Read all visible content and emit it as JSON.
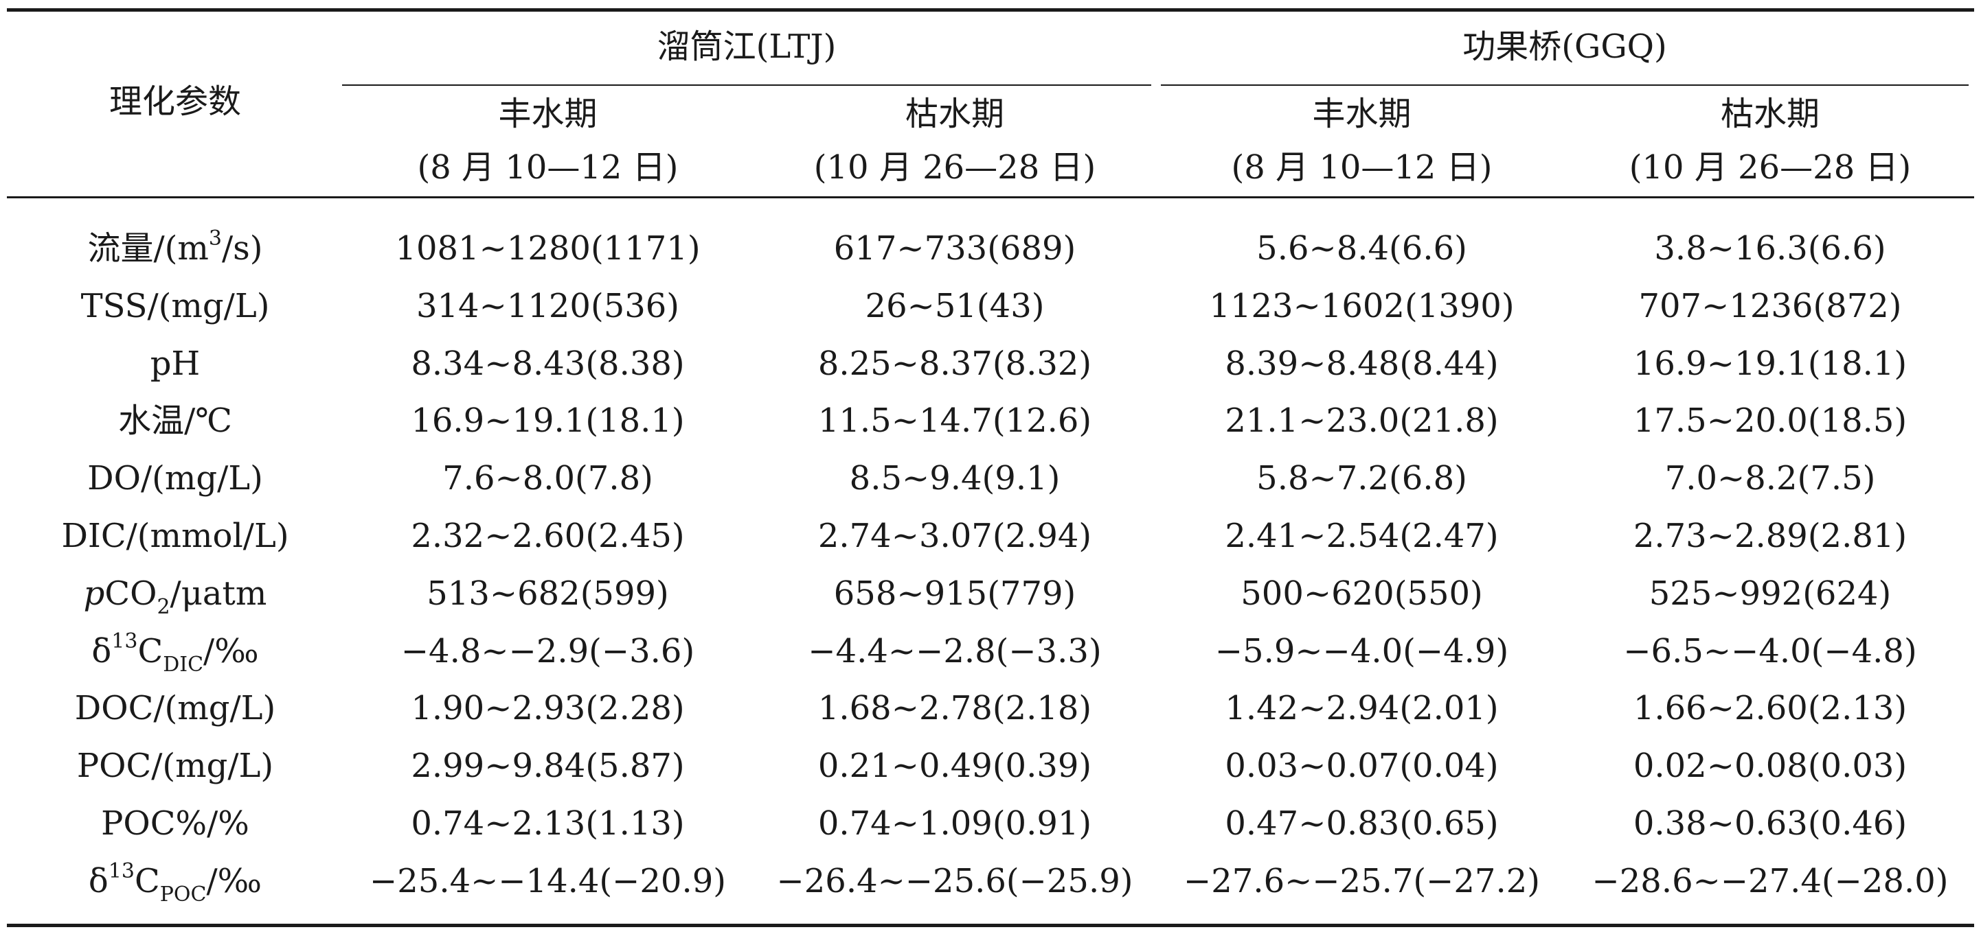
{
  "header": {
    "param_label": "理化参数",
    "groups": [
      {
        "name": "溜筒江(LTJ)",
        "periods": [
          {
            "name": "丰水期",
            "date": "(8 月 10—12 日)"
          },
          {
            "name": "枯水期",
            "date": "(10 月 26—28 日)"
          }
        ]
      },
      {
        "name": "功果桥(GGQ)",
        "periods": [
          {
            "name": "丰水期",
            "date": "(8 月 10—12 日)"
          },
          {
            "name": "枯水期",
            "date": "(10 月 26—28 日)"
          }
        ]
      }
    ]
  },
  "rows": [
    {
      "label_pre": "流量/(m",
      "label_sup": "3",
      "label_post": "/s)",
      "values": [
        "1081~1280(1171)",
        "617~733(689)",
        "5.6~8.4(6.6)",
        "3.8~16.3(6.6)"
      ]
    },
    {
      "label": "TSS/(mg/L)",
      "values": [
        "314~1120(536)",
        "26~51(43)",
        "1123~1602(1390)",
        "707~1236(872)"
      ]
    },
    {
      "label": "pH",
      "values": [
        "8.34~8.43(8.38)",
        "8.25~8.37(8.32)",
        "8.39~8.48(8.44)",
        "16.9~19.1(18.1)"
      ]
    },
    {
      "label": "水温/℃",
      "values": [
        "16.9~19.1(18.1)",
        "11.5~14.7(12.6)",
        "21.1~23.0(21.8)",
        "17.5~20.0(18.5)"
      ]
    },
    {
      "label": "DO/(mg/L)",
      "values": [
        "7.6~8.0(7.8)",
        "8.5~9.4(9.1)",
        "5.8~7.2(6.8)",
        "7.0~8.2(7.5)"
      ]
    },
    {
      "label": "DIC/(mmol/L)",
      "values": [
        "2.32~2.60(2.45)",
        "2.74~3.07(2.94)",
        "2.41~2.54(2.47)",
        "2.73~2.89(2.81)"
      ]
    },
    {
      "label_it": "p",
      "label_pre": "CO",
      "label_sub": "2",
      "label_post": "/μatm",
      "values": [
        "513~682(599)",
        "658~915(779)",
        "500~620(550)",
        "525~992(624)"
      ]
    },
    {
      "label_pre": "δ",
      "label_sup": "13",
      "label_mid": "C",
      "label_sub": "DIC",
      "label_post": "/‰",
      "values": [
        "−4.8~−2.9(−3.6)",
        "−4.4~−2.8(−3.3)",
        "−5.9~−4.0(−4.9)",
        "−6.5~−4.0(−4.8)"
      ]
    },
    {
      "label": "DOC/(mg/L)",
      "values": [
        "1.90~2.93(2.28)",
        "1.68~2.78(2.18)",
        "1.42~2.94(2.01)",
        "1.66~2.60(2.13)"
      ]
    },
    {
      "label": "POC/(mg/L)",
      "values": [
        "2.99~9.84(5.87)",
        "0.21~0.49(0.39)",
        "0.03~0.07(0.04)",
        "0.02~0.08(0.03)"
      ]
    },
    {
      "label": "POC%/%",
      "values": [
        "0.74~2.13(1.13)",
        "0.74~1.09(0.91)",
        "0.47~0.83(0.65)",
        "0.38~0.63(0.46)"
      ]
    },
    {
      "label_pre": "δ",
      "label_sup": "13",
      "label_mid": "C",
      "label_sub": "POC",
      "label_post": "/‰",
      "values": [
        "−25.4~−14.4(−20.9)",
        "−26.4~−25.6(−25.9)",
        "−27.6~−25.7(−27.2)",
        "−28.6~−27.4(−28.0)"
      ]
    }
  ]
}
